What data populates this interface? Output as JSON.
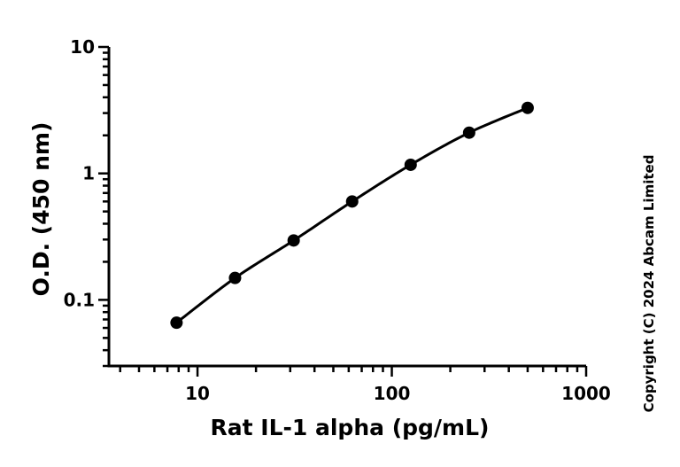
{
  "chart_data": {
    "type": "scatter",
    "xlabel": "Rat IL-1 alpha (pg/mL)",
    "ylabel": "O.D. (450 nm)",
    "xscale": "log",
    "yscale": "log",
    "xlim": [
      3.5,
      1000
    ],
    "ylim": [
      0.03,
      10
    ],
    "xticks": [
      {
        "value": 10,
        "label": "10"
      },
      {
        "value": 100,
        "label": "100"
      },
      {
        "value": 1000,
        "label": "1000"
      }
    ],
    "yticks": [
      {
        "value": 0.1,
        "label": "0.1"
      },
      {
        "value": 1,
        "label": "1"
      },
      {
        "value": 10,
        "label": "10"
      }
    ],
    "grid": false,
    "legend": "none",
    "series": [
      {
        "x": [
          7.8,
          15.6,
          31.25,
          62.5,
          125,
          250,
          500
        ],
        "y": [
          0.066,
          0.149,
          0.295,
          0.6,
          1.17,
          2.1,
          3.3
        ],
        "marker": "circle",
        "line": "fitted curve",
        "color": "#000000"
      }
    ]
  },
  "copyright": "Copyright (C) 2024 Abcam Limited"
}
